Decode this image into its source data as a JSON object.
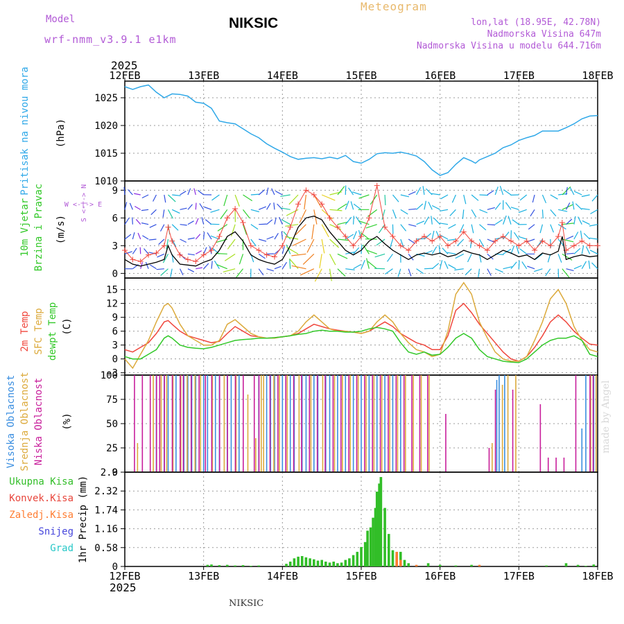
{
  "header": {
    "model_label": "Model",
    "model_name": "wrf-nmm_v3.9.1 e1km",
    "station": "NIKSIC",
    "title": "Meteogram",
    "location": "lon,lat (18.95E, 42.78N)",
    "elevation": "Nadmorska Visina 647m",
    "model_elevation": "Nadmorska Visina u modelu 644.716m",
    "footer": "NIKSIC",
    "credit": "made by Angel"
  },
  "colors": {
    "pressure": "#2fa8e8",
    "t2m": "#f0463c",
    "sfc": "#dcaa3c",
    "dewpt": "#32c828",
    "high_cloud": "#3a8ee0",
    "mid_cloud": "#dcaa3c",
    "low_cloud": "#c81e9b",
    "total_precip": "#32be28",
    "conv_precip": "#e8463c",
    "frozen_precip": "#ff7d32",
    "snow": "#4646dc",
    "graupel": "#28c8c8"
  },
  "chart_data": [
    {
      "type": "line",
      "name": "pressure",
      "ylabel": "Pritisak na nivou mora",
      "unit": "(hPa)",
      "ylim": [
        1010,
        1028
      ],
      "yticks": [
        1010,
        1015,
        1020,
        1025
      ],
      "x_top_labels": [
        "12FEB",
        "13FEB",
        "14FEB",
        "15FEB",
        "16FEB",
        "17FEB",
        "18FEB"
      ],
      "year": "2025",
      "x": [
        0,
        0.1,
        0.2,
        0.3,
        0.4,
        0.5,
        0.6,
        0.7,
        0.8,
        0.9,
        1.0,
        1.1,
        1.2,
        1.3,
        1.4,
        1.5,
        1.6,
        1.7,
        1.8,
        1.9,
        2.0,
        2.1,
        2.2,
        2.3,
        2.4,
        2.5,
        2.6,
        2.7,
        2.8,
        2.9,
        3.0,
        3.1,
        3.2,
        3.3,
        3.4,
        3.5,
        3.6,
        3.7,
        3.8,
        3.9,
        4.0,
        4.1,
        4.2,
        4.3,
        4.4,
        4.45,
        4.5,
        4.6,
        4.7,
        4.8,
        4.9,
        5.0,
        5.1,
        5.2,
        5.3,
        5.4,
        5.5,
        5.6,
        5.7,
        5.8,
        5.9,
        6.0
      ],
      "values": [
        1027.0,
        1026.5,
        1027.0,
        1027.3,
        1026.0,
        1025.0,
        1025.7,
        1025.6,
        1025.3,
        1024.2,
        1024.0,
        1023.1,
        1020.8,
        1020.5,
        1020.3,
        1019.4,
        1018.5,
        1017.8,
        1016.7,
        1015.9,
        1015.2,
        1014.4,
        1013.9,
        1014.1,
        1014.2,
        1014.0,
        1014.3,
        1014.0,
        1014.6,
        1013.5,
        1013.2,
        1013.9,
        1014.9,
        1015.1,
        1015.0,
        1015.2,
        1014.9,
        1014.5,
        1013.5,
        1012.0,
        1011.0,
        1011.5,
        1013.0,
        1014.2,
        1013.6,
        1013.2,
        1013.8,
        1014.4,
        1015.0,
        1016.0,
        1016.5,
        1017.3,
        1017.8,
        1018.2,
        1019.0,
        1019.0,
        1019.0,
        1019.6,
        1020.3,
        1021.2,
        1021.7,
        1021.8
      ]
    },
    {
      "type": "line",
      "name": "wind",
      "ylabel_1": "10m Vjetar",
      "ylabel_2": "Brzina i Pravac",
      "unit": "(m/s)",
      "direction_key": "W <-|-> E",
      "direction_key_vertical": "S <-|-> N",
      "ylim": [
        -0.5,
        10
      ],
      "yticks": [
        0,
        3,
        6,
        9
      ],
      "x": [
        0,
        0.1,
        0.2,
        0.3,
        0.4,
        0.5,
        0.55,
        0.6,
        0.7,
        0.8,
        0.9,
        1.0,
        1.1,
        1.2,
        1.3,
        1.4,
        1.5,
        1.6,
        1.7,
        1.8,
        1.9,
        2.0,
        2.1,
        2.2,
        2.3,
        2.4,
        2.5,
        2.6,
        2.7,
        2.8,
        2.9,
        3.0,
        3.1,
        3.2,
        3.3,
        3.4,
        3.5,
        3.6,
        3.7,
        3.8,
        3.9,
        4.0,
        4.1,
        4.2,
        4.3,
        4.4,
        4.5,
        4.6,
        4.7,
        4.8,
        4.9,
        5.0,
        5.1,
        5.2,
        5.3,
        5.4,
        5.5,
        5.55,
        5.6,
        5.7,
        5.8,
        5.9,
        6.0
      ],
      "speed": [
        1.5,
        1.0,
        0.8,
        1.0,
        1.2,
        1.5,
        3.0,
        2.0,
        1.0,
        0.9,
        0.8,
        1.2,
        1.5,
        2.5,
        4.0,
        4.5,
        3.5,
        2.0,
        1.5,
        1.2,
        1.0,
        1.5,
        3.0,
        5.0,
        6.0,
        6.2,
        5.8,
        4.5,
        3.5,
        2.5,
        2.0,
        2.5,
        3.5,
        4.0,
        3.2,
        2.5,
        2.0,
        1.5,
        2.0,
        2.2,
        2.0,
        2.2,
        1.8,
        2.0,
        2.5,
        2.2,
        2.0,
        1.5,
        2.0,
        2.5,
        2.2,
        1.8,
        2.0,
        1.5,
        2.2,
        2.0,
        2.4,
        4.0,
        1.5,
        1.8,
        2.0,
        1.8,
        1.9
      ],
      "gust": [
        2.5,
        1.5,
        1.3,
        2.0,
        2.2,
        3.0,
        5.0,
        3.5,
        2.0,
        1.5,
        1.3,
        2.0,
        2.5,
        4.0,
        6.0,
        7.0,
        5.5,
        3.0,
        2.5,
        2.0,
        1.8,
        3.0,
        5.0,
        7.5,
        9.0,
        8.5,
        7.5,
        6.0,
        5.0,
        4.0,
        3.0,
        4.0,
        6.0,
        9.5,
        5.0,
        4.0,
        3.0,
        2.5,
        3.5,
        4.0,
        3.5,
        4.0,
        3.0,
        3.5,
        4.5,
        3.5,
        3.0,
        2.5,
        3.5,
        4.0,
        3.5,
        3.0,
        3.5,
        2.5,
        3.5,
        3.0,
        4.0,
        5.5,
        2.5,
        3.0,
        3.5,
        3.0,
        3.0
      ]
    },
    {
      "type": "line",
      "name": "temperature",
      "ylabel_1": "2m Temp",
      "ylabel_2": "SFC Temp",
      "ylabel_3": "dewpt Temp",
      "unit": "(C)",
      "ylim": [
        -3.5,
        17.5
      ],
      "yticks": [
        -3,
        0,
        3,
        6,
        9,
        12,
        15
      ],
      "x": [
        0,
        0.1,
        0.2,
        0.3,
        0.4,
        0.5,
        0.55,
        0.6,
        0.7,
        0.8,
        0.9,
        1.0,
        1.1,
        1.2,
        1.3,
        1.4,
        1.5,
        1.6,
        1.7,
        1.8,
        1.9,
        2.0,
        2.1,
        2.2,
        2.3,
        2.4,
        2.5,
        2.6,
        2.7,
        2.8,
        2.9,
        3.0,
        3.1,
        3.2,
        3.3,
        3.4,
        3.5,
        3.6,
        3.7,
        3.8,
        3.9,
        4.0,
        4.1,
        4.2,
        4.3,
        4.4,
        4.5,
        4.6,
        4.7,
        4.8,
        4.9,
        5.0,
        5.1,
        5.2,
        5.3,
        5.4,
        5.5,
        5.6,
        5.7,
        5.8,
        5.9,
        6.0
      ],
      "series": [
        {
          "name": "2m Temp",
          "values": [
            2.0,
            1.5,
            2.5,
            3.5,
            5.5,
            8.0,
            8.3,
            7.5,
            6.0,
            5.0,
            4.5,
            4.0,
            3.5,
            3.8,
            5.5,
            7.0,
            6.0,
            5.0,
            4.8,
            4.5,
            4.6,
            4.8,
            5.0,
            5.5,
            6.5,
            7.5,
            7.0,
            6.5,
            6.2,
            6.0,
            5.8,
            5.5,
            6.0,
            7.0,
            8.0,
            7.0,
            5.5,
            4.5,
            3.5,
            3.0,
            2.0,
            2.0,
            5.0,
            10.5,
            12.0,
            10.0,
            7.5,
            5.5,
            3.5,
            1.5,
            0.0,
            -0.5,
            0.5,
            2.5,
            5.0,
            8.0,
            9.5,
            8.0,
            6.0,
            4.5,
            3.2,
            3.0
          ]
        },
        {
          "name": "SFC Temp",
          "values": [
            0.0,
            -2.0,
            1.0,
            4.0,
            8.0,
            11.5,
            12.0,
            11.0,
            7.5,
            5.0,
            4.0,
            3.0,
            3.0,
            4.0,
            7.5,
            8.5,
            7.0,
            5.5,
            4.8,
            4.5,
            4.5,
            4.8,
            5.0,
            6.0,
            8.0,
            9.5,
            8.0,
            6.5,
            6.0,
            6.0,
            5.8,
            5.5,
            6.0,
            8.0,
            9.5,
            8.0,
            5.5,
            3.5,
            2.0,
            1.5,
            0.5,
            1.0,
            6.0,
            14.0,
            16.5,
            14.0,
            8.0,
            4.5,
            1.5,
            0.0,
            -0.5,
            -0.5,
            0.5,
            4.0,
            8.0,
            13.0,
            15.0,
            12.0,
            7.0,
            4.0,
            2.0,
            1.5
          ]
        },
        {
          "name": "dewpt Temp",
          "values": [
            0.5,
            0.0,
            0.0,
            1.0,
            2.0,
            4.5,
            5.0,
            4.5,
            3.0,
            2.5,
            2.3,
            2.2,
            2.5,
            3.0,
            3.5,
            4.0,
            4.2,
            4.3,
            4.5,
            4.5,
            4.6,
            4.8,
            5.0,
            5.3,
            5.5,
            6.0,
            6.2,
            6.0,
            6.0,
            5.8,
            5.8,
            6.0,
            6.5,
            6.8,
            6.5,
            6.0,
            3.5,
            1.5,
            1.0,
            1.5,
            0.8,
            1.0,
            2.5,
            4.5,
            5.5,
            4.5,
            2.0,
            0.5,
            0.0,
            -0.5,
            -0.7,
            -0.8,
            0.0,
            1.5,
            3.0,
            4.0,
            4.5,
            4.5,
            5.0,
            4.0,
            1.0,
            0.5
          ]
        }
      ]
    },
    {
      "type": "bar",
      "name": "cloud",
      "ylabel_1": "Visoka Oblacnost",
      "ylabel_2": "Srednja Oblacnost",
      "ylabel_3": "Niska Oblacnost",
      "unit": "(%)",
      "ylim": [
        0,
        100
      ],
      "yticks": [
        0,
        25,
        50,
        75,
        100
      ],
      "series": [
        {
          "name": "Visoka Oblacnost",
          "x": [
            0.4,
            0.5,
            0.55,
            0.65,
            0.75,
            0.8,
            0.85,
            0.9,
            1.0,
            1.05,
            1.15,
            1.2,
            1.3,
            1.35,
            1.45,
            1.7,
            1.8,
            1.85,
            1.9,
            2.0,
            2.1,
            2.15,
            2.25,
            2.3,
            2.4,
            2.45,
            2.55,
            2.6,
            2.7,
            2.8,
            2.9,
            3.0,
            3.1,
            3.2,
            3.3,
            3.4,
            3.5,
            4.72,
            4.75,
            4.82,
            5.8,
            5.85,
            5.95,
            5.98
          ],
          "values": [
            100,
            100,
            100,
            100,
            100,
            100,
            100,
            100,
            100,
            100,
            100,
            100,
            100,
            100,
            100,
            100,
            100,
            100,
            100,
            100,
            100,
            100,
            100,
            100,
            100,
            100,
            100,
            100,
            100,
            100,
            100,
            100,
            100,
            100,
            100,
            100,
            100,
            95,
            100,
            100,
            45,
            100,
            100,
            100
          ]
        },
        {
          "name": "Srednja Oblacnost",
          "x": [
            0.15,
            0.35,
            0.45,
            0.52,
            0.6,
            0.7,
            0.78,
            0.88,
            0.95,
            1.1,
            1.25,
            1.4,
            1.55,
            1.65,
            1.72,
            1.75,
            1.88,
            1.95,
            2.05,
            2.2,
            2.35,
            2.5,
            2.65,
            2.75,
            2.85,
            2.95,
            3.05,
            3.15,
            3.25,
            3.35,
            3.45,
            3.55,
            3.65,
            3.75,
            3.85,
            4.65,
            4.78,
            4.85,
            4.95,
            5.9,
            5.97
          ],
          "values": [
            30,
            100,
            100,
            100,
            100,
            100,
            100,
            100,
            100,
            100,
            100,
            100,
            80,
            35,
            100,
            100,
            100,
            100,
            100,
            100,
            100,
            100,
            100,
            100,
            100,
            100,
            100,
            100,
            100,
            100,
            100,
            100,
            100,
            100,
            100,
            30,
            90,
            100,
            100,
            100,
            100
          ]
        },
        {
          "name": "Niska Oblacnost",
          "x": [
            0.1,
            0.2,
            0.3,
            0.38,
            0.42,
            0.48,
            0.58,
            0.68,
            0.72,
            0.82,
            0.92,
            1.0,
            1.08,
            1.18,
            1.28,
            1.38,
            1.48,
            1.62,
            1.68,
            1.82,
            1.92,
            2.02,
            2.12,
            2.22,
            2.32,
            2.42,
            2.52,
            2.62,
            2.72,
            2.82,
            2.92,
            3.02,
            3.12,
            3.22,
            3.32,
            3.42,
            3.52,
            3.62,
            3.72,
            3.82,
            4.05,
            4.6,
            4.68,
            4.9,
            5.25,
            5.35,
            5.45,
            5.55,
            5.7,
            5.88,
            5.92
          ],
          "values": [
            100,
            100,
            100,
            100,
            100,
            100,
            100,
            100,
            100,
            100,
            100,
            100,
            100,
            100,
            100,
            100,
            100,
            100,
            100,
            100,
            100,
            100,
            100,
            100,
            100,
            100,
            100,
            100,
            100,
            100,
            100,
            100,
            100,
            100,
            100,
            100,
            100,
            100,
            100,
            100,
            60,
            25,
            85,
            85,
            70,
            15,
            15,
            15,
            100,
            100,
            100
          ]
        }
      ]
    },
    {
      "type": "bar",
      "name": "precipitation",
      "ylabel_1": "Ukupna Kisa",
      "ylabel_2": "Konvek.Kisa",
      "ylabel_3": "Zaledj.Kisa",
      "ylabel_4": "Snijeg",
      "ylabel_5": "Grad",
      "unit": "1hr Precip (mm)",
      "ylim": [
        0,
        2.9
      ],
      "yticks": [
        0,
        0.58,
        1.16,
        1.74,
        2.32,
        2.9
      ],
      "x_bottom_labels": [
        "12FEB",
        "13FEB",
        "14FEB",
        "15FEB",
        "16FEB",
        "17FEB",
        "18FEB"
      ],
      "year": "2025",
      "series": [
        {
          "name": "Ukupna Kisa",
          "x": [
            1.05,
            1.1,
            1.2,
            1.3,
            1.4,
            1.5,
            1.6,
            1.7,
            2.05,
            2.1,
            2.15,
            2.2,
            2.25,
            2.3,
            2.35,
            2.4,
            2.45,
            2.5,
            2.55,
            2.6,
            2.65,
            2.7,
            2.75,
            2.8,
            2.85,
            2.9,
            2.95,
            3.0,
            3.05,
            3.08,
            3.12,
            3.15,
            3.18,
            3.2,
            3.23,
            3.25,
            3.3,
            3.35,
            3.4,
            3.45,
            3.5,
            3.55,
            3.6,
            3.85,
            4.0,
            4.2,
            4.4,
            5.35,
            5.6,
            5.75,
            5.85,
            5.95
          ],
          "values": [
            0.05,
            0.06,
            0.04,
            0.05,
            0.03,
            0.04,
            0.02,
            0.03,
            0.08,
            0.15,
            0.25,
            0.3,
            0.32,
            0.28,
            0.25,
            0.22,
            0.18,
            0.2,
            0.15,
            0.12,
            0.15,
            0.1,
            0.12,
            0.2,
            0.25,
            0.35,
            0.45,
            0.6,
            0.75,
            1.1,
            1.2,
            1.5,
            1.8,
            2.3,
            2.55,
            2.75,
            1.8,
            1.0,
            0.5,
            0.35,
            0.45,
            0.2,
            0.1,
            0.1,
            0.05,
            0.03,
            0.05,
            0.03,
            0.1,
            0.05,
            0.02,
            0.06
          ]
        },
        {
          "name": "Zaledj.Kisa",
          "x": [
            3.45,
            3.5,
            3.7,
            4.5
          ],
          "values": [
            0.45,
            0.2,
            0.05,
            0.05
          ]
        }
      ]
    }
  ]
}
